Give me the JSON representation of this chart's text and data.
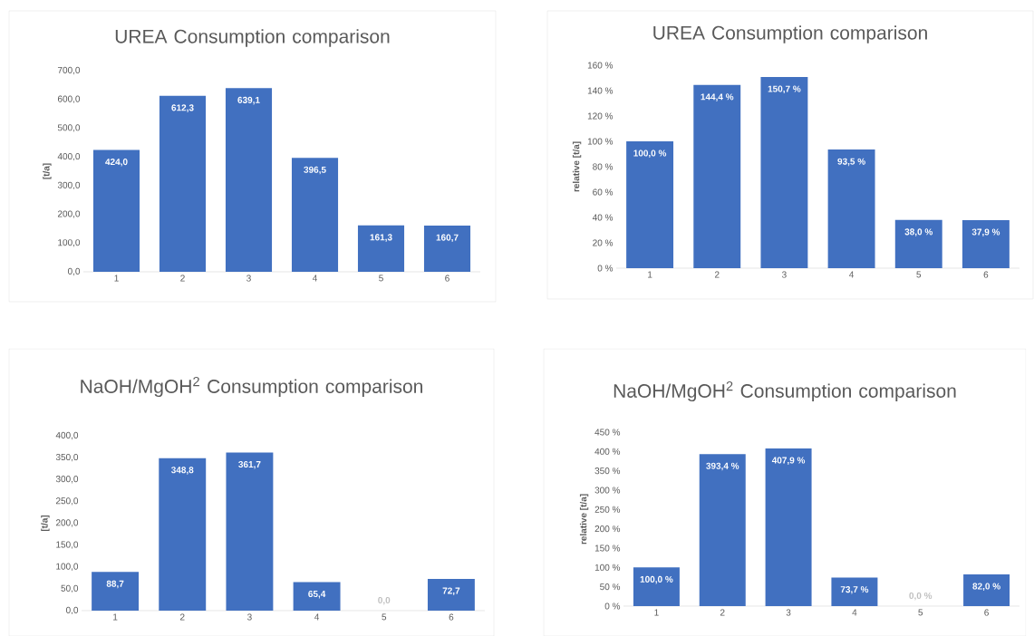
{
  "chart_data": [
    {
      "type": "bar",
      "title": "UREA Consumption comparison",
      "ylabel": "[t/a]",
      "categories": [
        "1",
        "2",
        "3",
        "4",
        "5",
        "6"
      ],
      "values": [
        424.0,
        612.3,
        639.1,
        396.5,
        161.3,
        160.7
      ],
      "value_labels": [
        "424,0",
        "612,3",
        "639,1",
        "396,5",
        "161,3",
        "160,7"
      ],
      "color": "#4170c0",
      "ylim": [
        0,
        700
      ],
      "yticks": [
        {
          "value": 0,
          "label": "0,0"
        },
        {
          "value": 100,
          "label": "100,0"
        },
        {
          "value": 200,
          "label": "200,0"
        },
        {
          "value": 300,
          "label": "300,0"
        },
        {
          "value": 400,
          "label": "400,0"
        },
        {
          "value": 500,
          "label": "500,0"
        },
        {
          "value": 600,
          "label": "600,0"
        },
        {
          "value": 700,
          "label": "700,0"
        }
      ]
    },
    {
      "type": "bar",
      "title": "UREA Consumption comparison",
      "ylabel": "relative [t/a]",
      "categories": [
        "1",
        "2",
        "3",
        "4",
        "5",
        "6"
      ],
      "values": [
        100.0,
        144.4,
        150.7,
        93.5,
        38.0,
        37.9
      ],
      "value_labels": [
        "100,0 %",
        "144,4 %",
        "150,7 %",
        "93,5 %",
        "38,0 %",
        "37,9 %"
      ],
      "color": "#4170c0",
      "ylim": [
        0,
        160
      ],
      "yticks": [
        {
          "value": 0,
          "label": "0 %"
        },
        {
          "value": 20,
          "label": "20 %"
        },
        {
          "value": 40,
          "label": "40 %"
        },
        {
          "value": 60,
          "label": "60 %"
        },
        {
          "value": 80,
          "label": "80 %"
        },
        {
          "value": 100,
          "label": "100 %"
        },
        {
          "value": 120,
          "label": "120 %"
        },
        {
          "value": 140,
          "label": "140 %"
        },
        {
          "value": 160,
          "label": "160 %"
        }
      ]
    },
    {
      "type": "bar",
      "title": "NaOH/MgOH$^{2}$ Consumption comparison",
      "ylabel": "[t/a]",
      "categories": [
        "1",
        "2",
        "3",
        "4",
        "5",
        "6"
      ],
      "values": [
        88.7,
        348.8,
        361.7,
        65.4,
        0.0,
        72.7
      ],
      "value_labels": [
        "88,7",
        "348,8",
        "361,7",
        "65,4",
        "0,0",
        "72,7"
      ],
      "color": "#4170c0",
      "ylim": [
        0,
        400
      ],
      "yticks": [
        {
          "value": 0,
          "label": "0,0"
        },
        {
          "value": 50,
          "label": "50,0"
        },
        {
          "value": 100,
          "label": "100,0"
        },
        {
          "value": 150,
          "label": "150,0"
        },
        {
          "value": 200,
          "label": "200,0"
        },
        {
          "value": 250,
          "label": "250,0"
        },
        {
          "value": 300,
          "label": "300,0"
        },
        {
          "value": 350,
          "label": "350,0"
        },
        {
          "value": 400,
          "label": "400,0"
        }
      ]
    },
    {
      "type": "bar",
      "title": "NaOH/MgOH$^{2}$ Consumption comparison",
      "ylabel": "relative [t/a]",
      "categories": [
        "1",
        "2",
        "3",
        "4",
        "5",
        "6"
      ],
      "values": [
        100.0,
        393.4,
        407.9,
        73.7,
        0.0,
        82.0
      ],
      "value_labels": [
        "100,0 %",
        "393,4 %",
        "407,9 %",
        "73,7 %",
        "0,0 %",
        "82,0 %"
      ],
      "color": "#4170c0",
      "ylim": [
        0,
        450
      ],
      "yticks": [
        {
          "value": 0,
          "label": "0 %"
        },
        {
          "value": 50,
          "label": "50 %"
        },
        {
          "value": 100,
          "label": "100 %"
        },
        {
          "value": 150,
          "label": "150 %"
        },
        {
          "value": 200,
          "label": "200 %"
        },
        {
          "value": 250,
          "label": "250 %"
        },
        {
          "value": 300,
          "label": "300 %"
        },
        {
          "value": 350,
          "label": "350 %"
        },
        {
          "value": 400,
          "label": "400 %"
        },
        {
          "value": 450,
          "label": "450 %"
        }
      ]
    }
  ]
}
